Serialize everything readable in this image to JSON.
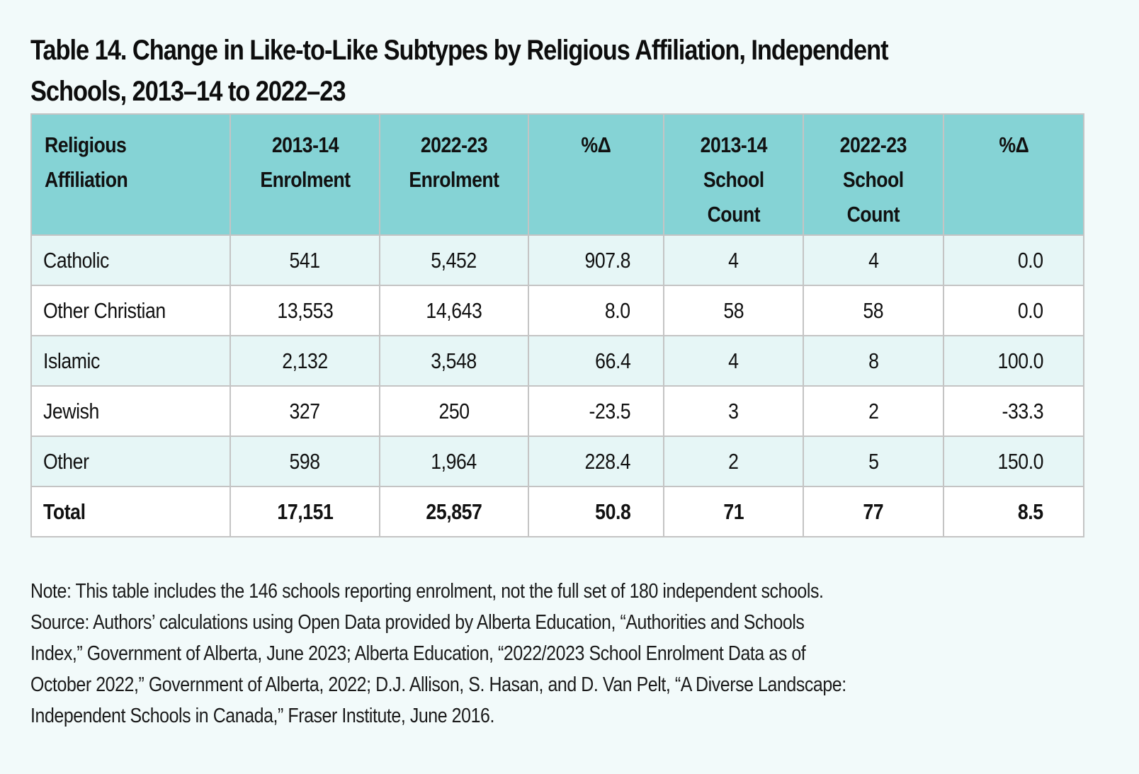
{
  "title": {
    "line1": "Table 14. Change in Like-to-Like Subtypes by Religious Affiliation, Independent",
    "line2": "Schools, 2013–14 to 2022–23"
  },
  "colors": {
    "page_background": "#f2fafa",
    "header_background": "#85d3d5",
    "striped_row_background": "#e6f6f6",
    "plain_row_background": "#ffffff",
    "border": "#c4c4c4"
  },
  "table": {
    "headers": [
      {
        "lines": [
          "Religious",
          "Affiliation",
          ""
        ]
      },
      {
        "lines": [
          "2013-14",
          "Enrolment",
          ""
        ]
      },
      {
        "lines": [
          "2022-23",
          "Enrolment",
          ""
        ]
      },
      {
        "lines": [
          "%Δ",
          "",
          ""
        ]
      },
      {
        "lines": [
          "2013-14",
          "School",
          "Count"
        ]
      },
      {
        "lines": [
          "2022-23",
          "School",
          "Count"
        ]
      },
      {
        "lines": [
          "%Δ",
          "",
          ""
        ]
      }
    ],
    "rows": [
      {
        "affiliation": "Catholic",
        "enrol_2013_14": "541",
        "enrol_2022_23": "5,452",
        "enrol_pct_change": "907.8",
        "schools_2013_14": "4",
        "schools_2022_23": "4",
        "schools_pct_change": "0.0"
      },
      {
        "affiliation": "Other Christian",
        "enrol_2013_14": "13,553",
        "enrol_2022_23": "14,643",
        "enrol_pct_change": "8.0",
        "schools_2013_14": "58",
        "schools_2022_23": "58",
        "schools_pct_change": "0.0"
      },
      {
        "affiliation": "Islamic",
        "enrol_2013_14": "2,132",
        "enrol_2022_23": "3,548",
        "enrol_pct_change": "66.4",
        "schools_2013_14": "4",
        "schools_2022_23": "8",
        "schools_pct_change": "100.0"
      },
      {
        "affiliation": "Jewish",
        "enrol_2013_14": "327",
        "enrol_2022_23": "250",
        "enrol_pct_change": "-23.5",
        "schools_2013_14": "3",
        "schools_2022_23": "2",
        "schools_pct_change": "-33.3"
      },
      {
        "affiliation": "Other",
        "enrol_2013_14": "598",
        "enrol_2022_23": "1,964",
        "enrol_pct_change": "228.4",
        "schools_2013_14": "2",
        "schools_2022_23": "5",
        "schools_pct_change": "150.0"
      }
    ],
    "total": {
      "affiliation": "Total",
      "enrol_2013_14": "17,151",
      "enrol_2022_23": "25,857",
      "enrol_pct_change": "50.8",
      "schools_2013_14": "71",
      "schools_2022_23": "77",
      "schools_pct_change": "8.5"
    }
  },
  "notes": {
    "lines": [
      "Note: This table includes the 146 schools reporting enrolment, not the full set of 180 independent schools.",
      "Source: Authors’ calculations using Open Data provided by Alberta Education, “Authorities and Schools",
      "Index,” Government of Alberta, June 2023; Alberta Education, “2022/2023 School Enrolment Data as of",
      "October 2022,” Government of Alberta, 2022; D.J. Allison, S. Hasan, and D. Van Pelt, “A Diverse Landscape:",
      "Independent Schools in Canada,” Fraser Institute, June 2016."
    ]
  }
}
